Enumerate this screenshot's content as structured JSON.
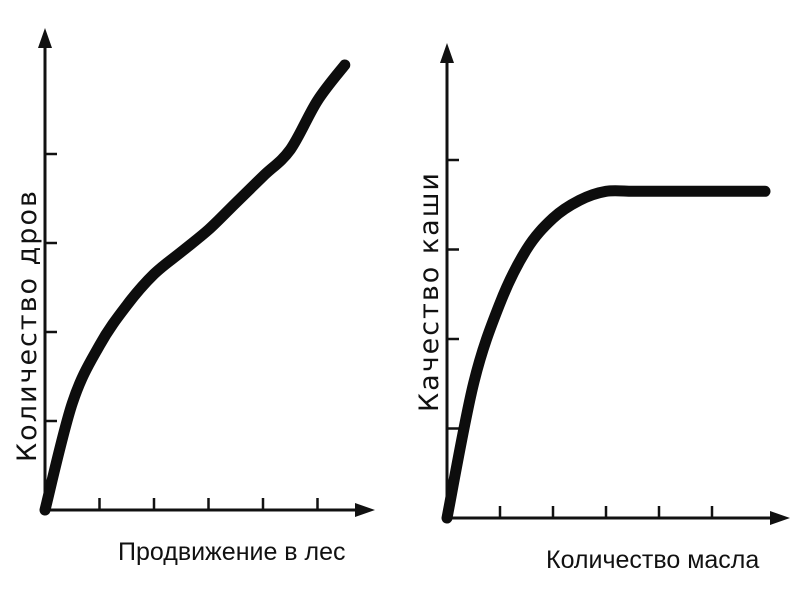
{
  "colors": {
    "ink": "#111111",
    "curve": "#0d0d0d",
    "background": "#ffffff"
  },
  "chart_data": [
    {
      "type": "line",
      "title": "",
      "xlabel": "Продвижение в лес",
      "ylabel": "Количество дров",
      "xlim": [
        0,
        6
      ],
      "ylim": [
        0,
        5
      ],
      "x_ticks": [
        1,
        2,
        3,
        4,
        5
      ],
      "y_ticks": [
        1,
        2,
        3,
        4
      ],
      "grid": false,
      "series": [
        {
          "x": [
            0,
            0.5,
            1,
            1.5,
            2,
            2.5,
            3,
            3.5,
            4,
            4.5,
            5,
            5.5
          ],
          "y": [
            0,
            1.2,
            1.85,
            2.3,
            2.65,
            2.9,
            3.15,
            3.45,
            3.75,
            4.05,
            4.6,
            5.0
          ]
        }
      ]
    },
    {
      "type": "line",
      "title": "",
      "xlabel": "Количество масла",
      "ylabel": "Качество каши",
      "xlim": [
        0,
        6.5
      ],
      "ylim": [
        0,
        4.4
      ],
      "x_ticks": [
        1,
        2,
        3,
        4,
        5
      ],
      "y_ticks": [
        1,
        2,
        3,
        4
      ],
      "grid": false,
      "series": [
        {
          "x": [
            0,
            0.5,
            1,
            1.5,
            2,
            2.5,
            3,
            3.5,
            4,
            4.5,
            5,
            5.5,
            6
          ],
          "y": [
            0,
            1.5,
            2.4,
            3.0,
            3.35,
            3.55,
            3.65,
            3.65,
            3.65,
            3.65,
            3.65,
            3.65,
            3.65
          ]
        }
      ]
    }
  ]
}
